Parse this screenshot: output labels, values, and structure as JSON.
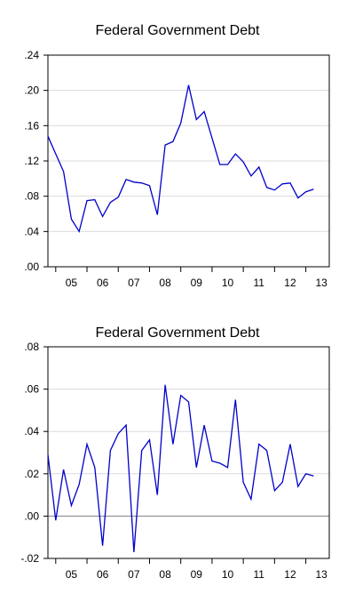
{
  "chart_data": [
    {
      "type": "line",
      "title": "Federal Government Debt",
      "xlabel": "",
      "ylabel": "",
      "x_tick_labels": [
        "05",
        "06",
        "07",
        "08",
        "09",
        "10",
        "11",
        "12",
        "13"
      ],
      "y_tick_labels": [
        ".00",
        ".04",
        ".08",
        ".12",
        ".16",
        ".20",
        ".24"
      ],
      "y_ticks": [
        0.0,
        0.04,
        0.08,
        0.12,
        0.16,
        0.2,
        0.24
      ],
      "ylim": [
        0.0,
        0.24
      ],
      "x_start": 2004.75,
      "x_step": 0.25,
      "xlim": [
        2004.75,
        2013.75
      ],
      "grid": true,
      "line_color": "#0000cc",
      "values": [
        0.148,
        0.128,
        0.108,
        0.054,
        0.04,
        0.075,
        0.076,
        0.057,
        0.073,
        0.079,
        0.099,
        0.096,
        0.095,
        0.092,
        0.059,
        0.138,
        0.142,
        0.163,
        0.206,
        0.167,
        0.176,
        0.146,
        0.116,
        0.116,
        0.128,
        0.119,
        0.103,
        0.113,
        0.09,
        0.087,
        0.094,
        0.095,
        0.078,
        0.085,
        0.088
      ]
    },
    {
      "type": "line",
      "title": "Federal Government Debt",
      "xlabel": "",
      "ylabel": "",
      "x_tick_labels": [
        "05",
        "06",
        "07",
        "08",
        "09",
        "10",
        "11",
        "12",
        "13"
      ],
      "y_tick_labels": [
        "-.02",
        ".00",
        ".02",
        ".04",
        ".06",
        ".08"
      ],
      "y_ticks": [
        -0.02,
        0.0,
        0.02,
        0.04,
        0.06,
        0.08
      ],
      "ylim": [
        -0.02,
        0.08
      ],
      "x_start": 2004.75,
      "x_step": 0.25,
      "xlim": [
        2004.75,
        2013.75
      ],
      "grid": true,
      "zero_line": true,
      "line_color": "#0000cc",
      "values": [
        0.029,
        -0.002,
        0.022,
        0.005,
        0.015,
        0.034,
        0.023,
        -0.014,
        0.031,
        0.039,
        0.043,
        -0.017,
        0.031,
        0.036,
        0.01,
        0.062,
        0.034,
        0.057,
        0.054,
        0.023,
        0.043,
        0.026,
        0.025,
        0.023,
        0.055,
        0.016,
        0.008,
        0.034,
        0.031,
        0.012,
        0.016,
        0.034,
        0.014,
        0.02,
        0.019
      ]
    }
  ]
}
